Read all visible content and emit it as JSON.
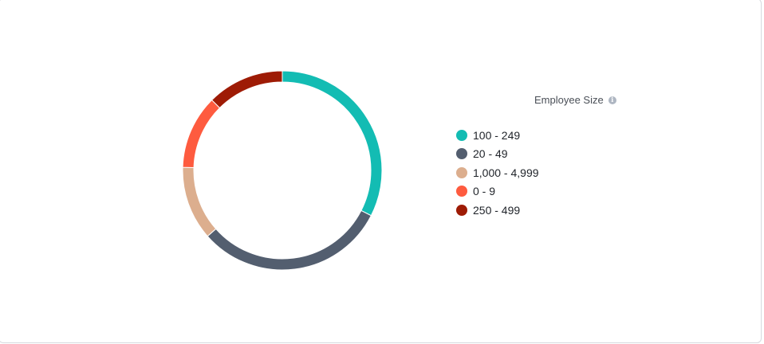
{
  "chart_data": {
    "type": "pie",
    "style": "donut",
    "legend_title": "Employee Size",
    "legend_position": "right",
    "categories": [
      "100 - 249",
      "20 - 49",
      "1,000 - 4,999",
      "0 - 9",
      "250 - 499"
    ],
    "values": [
      32.5,
      31.0,
      12.0,
      12.0,
      12.5
    ],
    "colors": [
      "#13bcb3",
      "#535e6f",
      "#dcae8e",
      "#fe5b3f",
      "#9e1b05"
    ]
  }
}
